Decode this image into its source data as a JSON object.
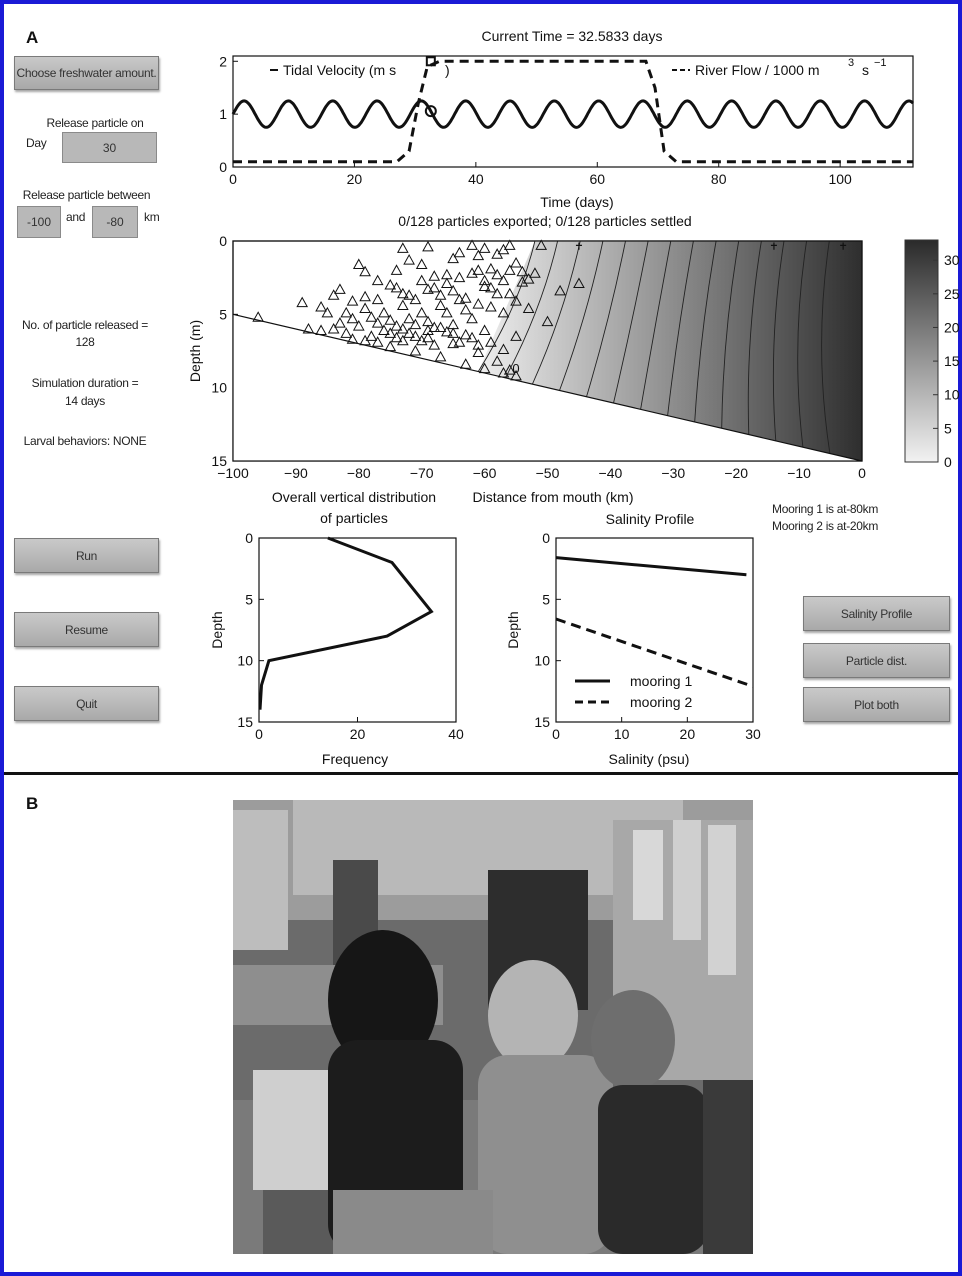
{
  "panel_a_label": "A",
  "panel_b_label": "B",
  "controls": {
    "freshwater_button": "Choose freshwater amount.",
    "release_day_label": "Release particle on",
    "day_label": "Day",
    "release_day_value": "30",
    "release_between_label": "Release particle between",
    "range_from_value": "-100",
    "and_label": "and",
    "range_to_value": "-80",
    "km_label": "km",
    "particles_released_label": "No. of particle released =",
    "particles_released_value": "128",
    "duration_label": "Simulation duration =",
    "duration_value": "14 days",
    "larval_behaviors": "Larval behaviors: NONE",
    "run_button": "Run",
    "resume_button": "Resume",
    "quit_button": "Quit",
    "salinity_profile_button": "Salinity Profile",
    "particle_dist_button": "Particle dist.",
    "plot_both_button": "Plot both",
    "mooring1_note": "Mooring 1 is at-80km",
    "mooring2_note": "Mooring 2 is at-20km"
  },
  "chart_data": [
    {
      "id": "time",
      "type": "line",
      "title": "Current Time = 32.5833 days",
      "xlabel": "Time (days)",
      "ylabel": "",
      "xlim": [
        0,
        112
      ],
      "ylim": [
        0,
        2.1
      ],
      "xticks": [
        0,
        20,
        40,
        60,
        80,
        100
      ],
      "yticks": [
        0,
        1,
        2
      ],
      "series": [
        {
          "name": "Tidal Velocity (m s",
          "style": "solid",
          "mean": 1.0,
          "amplitude": 0.25,
          "period_days": 7.3
        },
        {
          "name": "River Flow / 1000 m",
          "style": "dashed",
          "x": [
            0,
            27,
            29,
            30.5,
            32,
            34,
            68,
            69.5,
            71,
            73,
            112
          ],
          "y": [
            0.1,
            0.1,
            0.3,
            1.2,
            1.9,
            2.0,
            2.0,
            1.5,
            0.3,
            0.1,
            0.1
          ]
        }
      ],
      "legend_suffix_tidal": ")",
      "legend_superscript_river": "3",
      "legend_unit_river": "s",
      "legend_exponent_river": "−1",
      "current_time": 32.5833
    },
    {
      "id": "section",
      "type": "heatmap",
      "title": "0/128 particles exported;  0/128 particles settled",
      "xlabel": "Distance from mouth (km)",
      "ylabel": "Depth (m)",
      "xlim": [
        -100,
        0
      ],
      "ylim": [
        0,
        15
      ],
      "xticks": [
        -100,
        -90,
        -80,
        -70,
        -60,
        -50,
        -40,
        -30,
        -20,
        -10,
        0
      ],
      "yticks": [
        0,
        5,
        10,
        15
      ],
      "contour_label": "0",
      "colorbar": {
        "min": 0,
        "max": 33,
        "ticks": [
          0,
          5,
          10,
          15,
          20,
          25,
          30
        ],
        "low_color": "#f2f2f2",
        "high_color": "#2a2a2a"
      },
      "fresh_edge_km": [
        -52,
        -57,
        -61
      ],
      "particles": [
        [
          -96,
          5.2
        ],
        [
          -89,
          4.2
        ],
        [
          -86,
          4.5
        ],
        [
          -85,
          4.9
        ],
        [
          -84,
          3.7
        ],
        [
          -83,
          3.3
        ],
        [
          -82,
          4.9
        ],
        [
          -81,
          5.3
        ],
        [
          -80,
          5.8
        ],
        [
          -79,
          4.6
        ],
        [
          -78,
          5.2
        ],
        [
          -77,
          4.0
        ],
        [
          -76,
          4.9
        ],
        [
          -75,
          3.0
        ],
        [
          -74,
          5.8
        ],
        [
          -73,
          3.6
        ],
        [
          -72,
          5.3
        ],
        [
          -71,
          4.0
        ],
        [
          -70,
          4.9
        ],
        [
          -69,
          3.3
        ],
        [
          -68,
          5.9
        ],
        [
          -67,
          4.4
        ],
        [
          -66,
          4.9
        ],
        [
          -65,
          5.7
        ],
        [
          -64,
          4.0
        ],
        [
          -63,
          4.7
        ],
        [
          -62,
          5.3
        ],
        [
          -61,
          2.0
        ],
        [
          -60,
          2.7
        ],
        [
          -59,
          3.2
        ],
        [
          -58,
          3.6
        ],
        [
          -57,
          2.7
        ],
        [
          -56,
          3.6
        ],
        [
          -80,
          1.6
        ],
        [
          -79,
          2.1
        ],
        [
          -77,
          2.7
        ],
        [
          -74,
          2.0
        ],
        [
          -73,
          0.5
        ],
        [
          -72,
          1.3
        ],
        [
          -70,
          1.6
        ],
        [
          -69,
          0.4
        ],
        [
          -68,
          2.4
        ],
        [
          -66,
          2.3
        ],
        [
          -65,
          1.2
        ],
        [
          -64,
          0.8
        ],
        [
          -62,
          0.3
        ],
        [
          -61,
          1.0
        ],
        [
          -60,
          0.5
        ],
        [
          -59,
          1.9
        ],
        [
          -58,
          0.9
        ],
        [
          -57,
          0.6
        ],
        [
          -56,
          0.3
        ],
        [
          -55,
          1.5
        ],
        [
          -54,
          2.1
        ],
        [
          -53,
          2.6
        ],
        [
          -78,
          6.5
        ],
        [
          -75,
          7.2
        ],
        [
          -73,
          6.8
        ],
        [
          -71,
          7.5
        ],
        [
          -69,
          6.6
        ],
        [
          -67,
          7.9
        ],
        [
          -65,
          7.0
        ],
        [
          -63,
          8.4
        ],
        [
          -61,
          7.6
        ],
        [
          -60,
          8.7
        ],
        [
          -58,
          8.2
        ],
        [
          -57,
          9.0
        ],
        [
          -56,
          8.8
        ],
        [
          -55,
          9.2
        ],
        [
          -60,
          6.1
        ],
        [
          -62,
          6.6
        ],
        [
          -64,
          6.9
        ],
        [
          -66,
          6.2
        ],
        [
          -68,
          7.1
        ],
        [
          -70,
          6.8
        ],
        [
          -72,
          6.3
        ],
        [
          -74,
          6.6
        ],
        [
          -76,
          6.1
        ],
        [
          -82,
          6.3
        ],
        [
          -84,
          6.0
        ],
        [
          -86,
          6.1
        ],
        [
          -88,
          6.0
        ],
        [
          -83,
          5.6
        ],
        [
          -81,
          4.1
        ],
        [
          -79,
          3.8
        ],
        [
          -77,
          5.6
        ],
        [
          -75,
          5.4
        ],
        [
          -73,
          4.4
        ],
        [
          -71,
          5.7
        ],
        [
          -69,
          5.5
        ],
        [
          -67,
          3.7
        ],
        [
          -65,
          3.4
        ],
        [
          -63,
          3.9
        ],
        [
          -61,
          4.3
        ],
        [
          -59,
          4.5
        ],
        [
          -57,
          4.9
        ],
        [
          -55,
          4.1
        ],
        [
          -53,
          4.6
        ],
        [
          -50,
          5.5
        ],
        [
          -48,
          3.4
        ],
        [
          -45,
          2.9
        ],
        [
          -55,
          6.5
        ],
        [
          -57,
          7.4
        ],
        [
          -59,
          6.9
        ],
        [
          -61,
          7.1
        ],
        [
          -63,
          6.4
        ],
        [
          -65,
          6.3
        ],
        [
          -67,
          5.9
        ],
        [
          -69,
          6.1
        ],
        [
          -71,
          6.5
        ],
        [
          -73,
          6.0
        ],
        [
          -75,
          6.3
        ],
        [
          -77,
          6.9
        ],
        [
          -79,
          6.8
        ],
        [
          -81,
          7.0
        ],
        [
          -74,
          3.2
        ],
        [
          -72,
          3.7
        ],
        [
          -70,
          2.7
        ],
        [
          -68,
          3.2
        ],
        [
          -66,
          2.9
        ],
        [
          -64,
          2.5
        ],
        [
          -62,
          2.2
        ],
        [
          -60,
          3.1
        ],
        [
          -58,
          2.3
        ],
        [
          -56,
          2.0
        ],
        [
          -54,
          2.8
        ],
        [
          -52,
          2.2
        ],
        [
          -51,
          0.3
        ]
      ],
      "surface_markers_km": [
        -45,
        -14,
        -3
      ]
    },
    {
      "id": "vertical",
      "type": "line",
      "title": "Overall vertical distribution of particles",
      "title_lines": [
        "Overall vertical distribution",
        "of particles"
      ],
      "xlabel": "Frequency",
      "ylabel": "Depth",
      "xlim": [
        0,
        40
      ],
      "ylim": [
        0,
        15
      ],
      "xticks": [
        0,
        20,
        40
      ],
      "yticks": [
        0,
        5,
        10,
        15
      ],
      "series": [
        {
          "name": "",
          "x": [
            14,
            27,
            35,
            26,
            2,
            0.5,
            0.2
          ],
          "y": [
            0,
            2,
            6,
            8,
            10,
            12,
            14
          ]
        }
      ]
    },
    {
      "id": "salinity",
      "type": "line",
      "title": "Salinity Profile",
      "xlabel": "Salinity (psu)",
      "ylabel": "Depth",
      "xlim": [
        0,
        30
      ],
      "ylim": [
        0,
        15
      ],
      "xticks": [
        0,
        10,
        20,
        30
      ],
      "yticks": [
        0,
        5,
        10,
        15
      ],
      "series": [
        {
          "name": "mooring 1",
          "style": "solid",
          "x": [
            0,
            29
          ],
          "y": [
            1.6,
            3.0
          ]
        },
        {
          "name": "mooring 2",
          "style": "dashed",
          "x": [
            0,
            30
          ],
          "y": [
            6.6,
            12.1
          ]
        }
      ]
    }
  ]
}
